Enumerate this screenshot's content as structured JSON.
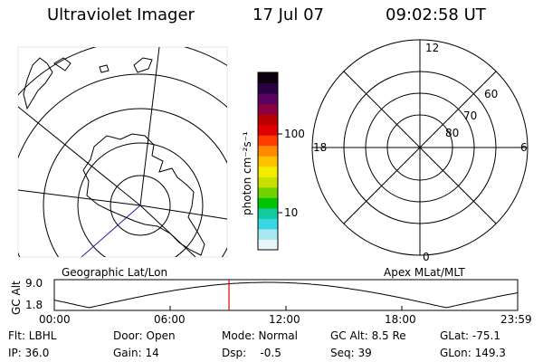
{
  "header": {
    "title": "Ultraviolet Imager",
    "date": "17 Jul 07",
    "time": "09:02:58 UT"
  },
  "geo_panel": {
    "label": "Geographic Lat/Lon"
  },
  "colorbar": {
    "unit_label": "photon cm⁻²s⁻¹",
    "ticks": [
      "100",
      "10"
    ],
    "colors": [
      "#e8f6f8",
      "#a9e8f0",
      "#39d6e6",
      "#12c9a0",
      "#00c400",
      "#6fd400",
      "#c8e000",
      "#f2ec00",
      "#ffc000",
      "#ff8a00",
      "#ff3c00",
      "#e00000",
      "#b80000",
      "#8a0040",
      "#5a0060",
      "#2a0040",
      "#0a0010"
    ]
  },
  "mag_panel": {
    "label": "Apex MLat/MLT",
    "mlt": {
      "top": "12",
      "left": "18",
      "right": "6",
      "bottom": "0"
    },
    "mlat": [
      "60",
      "70",
      "80"
    ]
  },
  "altitude_plot": {
    "ylabel": "GC Alt",
    "yticks": [
      "9.0",
      "1.8"
    ],
    "xticks": [
      "00:00",
      "06:00",
      "12:00",
      "18:00",
      "23:59"
    ],
    "current_time_fraction": 0.377
  },
  "footer": {
    "row1": {
      "filter": "Flt: LBHL",
      "door": "Door: Open",
      "mode": "Mode: Normal",
      "gc_alt": "GC Alt: 8.5 Re",
      "glat": "GLat: -75.1"
    },
    "row2": {
      "ip": "IP: 36.0",
      "gain": "Gain: 14",
      "dsp": "Dsp:    -0.5",
      "seq": "Seq: 39",
      "glon": "GLon: 149.3"
    }
  }
}
